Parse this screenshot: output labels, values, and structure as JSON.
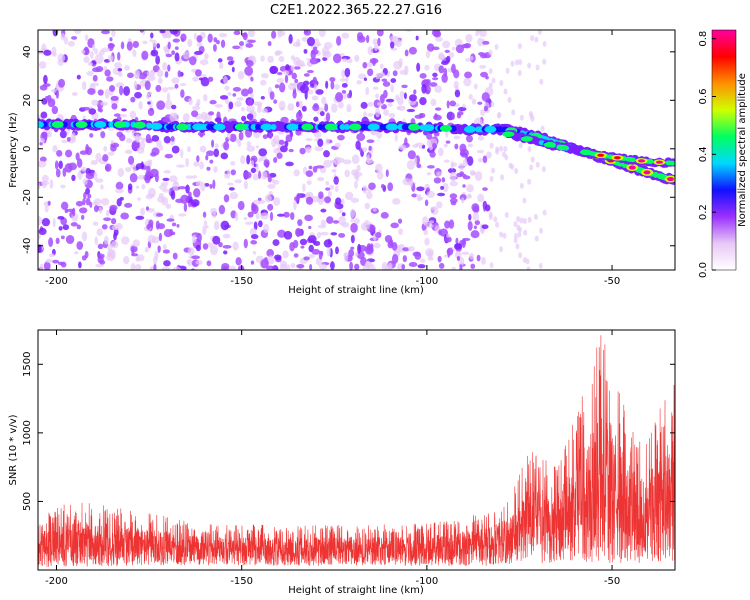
{
  "title": "C2E1.2022.365.22.27.G16",
  "chart_data": [
    {
      "type": "heatmap",
      "xlabel": "Height of straight line (km)",
      "ylabel": "Frequency (Hz)",
      "xlim": [
        -205,
        -33
      ],
      "ylim": [
        -50,
        49
      ],
      "xticks": [
        -200,
        -150,
        -100,
        -50
      ],
      "yticks": [
        -40,
        -20,
        0,
        20,
        40
      ],
      "grid": false,
      "noise_region_x": [
        -205,
        -83
      ],
      "signal_band": [
        {
          "x": -203,
          "y": 10
        },
        {
          "x": -197,
          "y": 10
        },
        {
          "x": -180,
          "y": 10
        },
        {
          "x": -170,
          "y": 9
        },
        {
          "x": -160,
          "y": 9
        },
        {
          "x": -120,
          "y": 9
        },
        {
          "x": -105,
          "y": 9
        },
        {
          "x": -88,
          "y": 8
        },
        {
          "x": -79,
          "y": 8
        },
        {
          "x": -70,
          "y": 5
        },
        {
          "x": -60,
          "y": 0
        },
        {
          "x": -50,
          "y": -5
        },
        {
          "x": -40,
          "y": -10
        },
        {
          "x": -33,
          "y": -13
        }
      ],
      "secondary_band": [
        {
          "x": -78,
          "y": 6
        },
        {
          "x": -65,
          "y": 1
        },
        {
          "x": -52,
          "y": -3
        },
        {
          "x": -42,
          "y": -5
        },
        {
          "x": -33,
          "y": -6
        }
      ],
      "colorbar": {
        "label": "Normalized spectral amplitude",
        "range": [
          0,
          0.83
        ],
        "ticks": [
          "0.0",
          "0.2",
          "0.4",
          "0.6",
          "0.8"
        ],
        "colors": [
          "#ffffff",
          "#e8c8f5",
          "#9b30ff",
          "#1010ff",
          "#00d8ff",
          "#00ff60",
          "#d0ff00",
          "#ff9000",
          "#ff0000",
          "#ff00a0"
        ]
      }
    },
    {
      "type": "line",
      "xlabel": "Height of straight line (km)",
      "ylabel": "SNR (10 * v/v)",
      "xlim": [
        -205,
        -33
      ],
      "ylim": [
        0,
        1750
      ],
      "xticks": [
        -200,
        -150,
        -100,
        -50
      ],
      "yticks": [
        500,
        1000,
        1500
      ],
      "grid": false,
      "series": [
        {
          "color": "#ee3333",
          "envelope": [
            {
              "x": -205,
              "min": 20,
              "max": 380
            },
            {
              "x": -195,
              "min": 20,
              "max": 520
            },
            {
              "x": -180,
              "min": 30,
              "max": 440
            },
            {
              "x": -160,
              "min": 30,
              "max": 340
            },
            {
              "x": -140,
              "min": 30,
              "max": 330
            },
            {
              "x": -120,
              "min": 30,
              "max": 330
            },
            {
              "x": -100,
              "min": 30,
              "max": 340
            },
            {
              "x": -85,
              "min": 30,
              "max": 420
            },
            {
              "x": -78,
              "min": 40,
              "max": 520
            },
            {
              "x": -72,
              "min": 50,
              "max": 900
            },
            {
              "x": -65,
              "min": 50,
              "max": 750
            },
            {
              "x": -58,
              "min": 60,
              "max": 1300
            },
            {
              "x": -53,
              "min": 30,
              "max": 1750
            },
            {
              "x": -48,
              "min": 40,
              "max": 1300
            },
            {
              "x": -43,
              "min": 40,
              "max": 950
            },
            {
              "x": -38,
              "min": 60,
              "max": 1150
            },
            {
              "x": -33,
              "min": 60,
              "max": 1400
            }
          ]
        }
      ]
    }
  ]
}
